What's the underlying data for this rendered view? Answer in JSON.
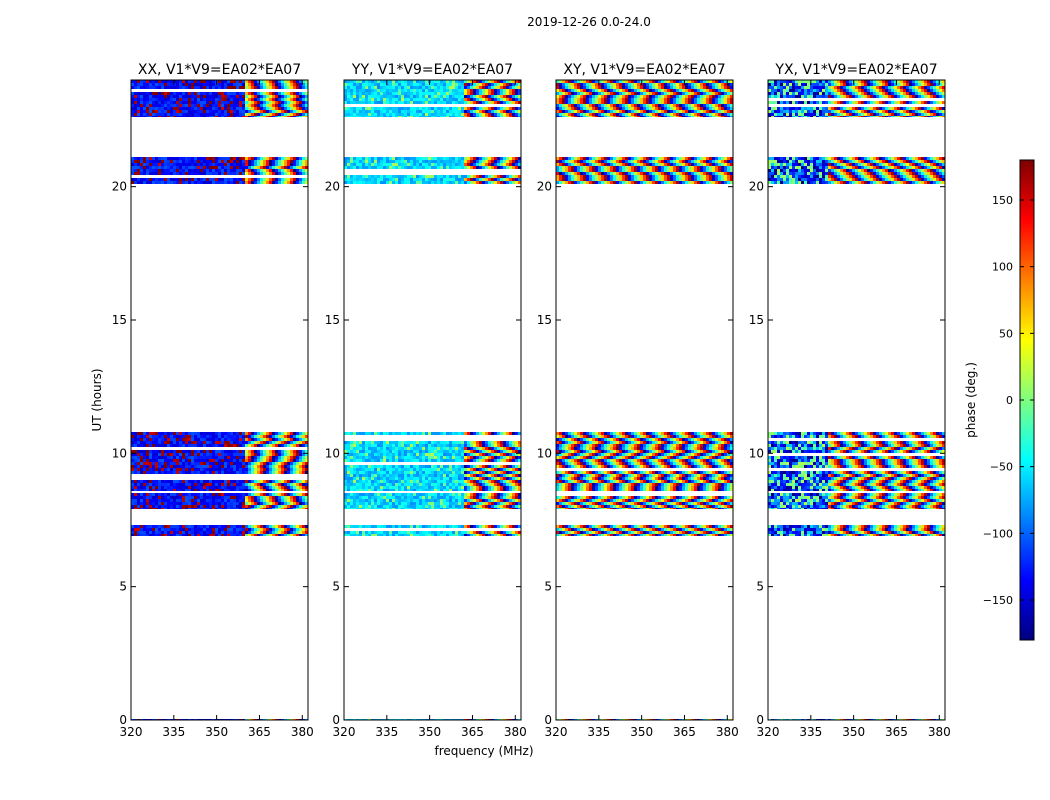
{
  "figure_title": "2019-12-26 0.0-24.0",
  "xlabel": "frequency (MHz)",
  "ylabel": "UT (hours)",
  "colorbar": {
    "label": "phase (deg.)",
    "ticks": [
      -150,
      -100,
      -50,
      0,
      50,
      100,
      150
    ],
    "tick_labels": [
      "−150",
      "−100",
      "−50",
      "0",
      "50",
      "100",
      "150"
    ],
    "range": [
      -180,
      180
    ],
    "colors": [
      "#00007f",
      "#0000ff",
      "#007fff",
      "#00ffff",
      "#7fff7f",
      "#ffff00",
      "#ff7f00",
      "#ff0000",
      "#7f0000"
    ]
  },
  "chart_data": [
    {
      "type": "heatmap",
      "title": "XX, V1*V9=EA02*EA07",
      "xlabel": "frequency (MHz)",
      "ylabel": "UT (hours)",
      "xlim": [
        320,
        382
      ],
      "ylim": [
        0,
        24
      ],
      "xticks": [
        320,
        335,
        350,
        365,
        380
      ],
      "yticks": [
        0,
        5,
        10,
        15,
        20
      ],
      "fringe_start_mhz": 359,
      "dominant_phase": -130,
      "phase_spread": 25,
      "outlier_phase": 170,
      "outlier_fraction": 0.18,
      "bands_ut": [
        [
          0,
          0.05
        ],
        [
          6.9,
          7.3
        ],
        [
          7.9,
          8.5
        ],
        [
          8.6,
          10.8
        ],
        [
          20.1,
          21.1
        ],
        [
          22.6,
          24
        ]
      ]
    },
    {
      "type": "heatmap",
      "title": "YY, V1*V9=EA02*EA07",
      "xlabel": "frequency (MHz)",
      "ylabel": "UT (hours)",
      "xlim": [
        320,
        382
      ],
      "ylim": [
        0,
        24
      ],
      "xticks": [
        320,
        335,
        350,
        365,
        380
      ],
      "yticks": [
        0,
        5,
        10,
        15,
        20
      ],
      "fringe_start_mhz": 361,
      "dominant_phase": -60,
      "phase_spread": 25,
      "outlier_phase": 0,
      "outlier_fraction": 0.1,
      "bands_ut": [
        [
          0,
          0.05
        ],
        [
          6.9,
          7.3
        ],
        [
          7.9,
          8.5
        ],
        [
          8.6,
          10.8
        ],
        [
          20.1,
          21.1
        ],
        [
          22.6,
          24
        ]
      ]
    },
    {
      "type": "heatmap",
      "title": "XY, V1*V9=EA02*EA07",
      "xlabel": "frequency (MHz)",
      "ylabel": "UT (hours)",
      "xlim": [
        320,
        382
      ],
      "ylim": [
        0,
        24
      ],
      "xticks": [
        320,
        335,
        350,
        365,
        380
      ],
      "yticks": [
        0,
        5,
        10,
        15,
        20
      ],
      "fringe_start_mhz": 320,
      "dominant_phase": 0,
      "phase_spread": 180,
      "outlier_phase": 0,
      "outlier_fraction": 0,
      "bands_ut": [
        [
          0,
          0.05
        ],
        [
          6.9,
          7.3
        ],
        [
          7.9,
          8.5
        ],
        [
          8.6,
          10.8
        ],
        [
          20.1,
          21.1
        ],
        [
          22.6,
          24
        ]
      ]
    },
    {
      "type": "heatmap",
      "title": "YX, V1*V9=EA02*EA07",
      "xlabel": "frequency (MHz)",
      "ylabel": "UT (hours)",
      "xlim": [
        320,
        382
      ],
      "ylim": [
        0,
        24
      ],
      "xticks": [
        320,
        335,
        350,
        365,
        380
      ],
      "yticks": [
        0,
        5,
        10,
        15,
        20
      ],
      "fringe_start_mhz": 340,
      "dominant_phase": -120,
      "phase_spread": 60,
      "outlier_phase": 0,
      "outlier_fraction": 0.25,
      "bands_ut": [
        [
          0,
          0.05
        ],
        [
          6.9,
          7.3
        ],
        [
          7.9,
          8.5
        ],
        [
          8.6,
          10.8
        ],
        [
          20.1,
          21.1
        ],
        [
          22.6,
          24
        ]
      ]
    }
  ]
}
